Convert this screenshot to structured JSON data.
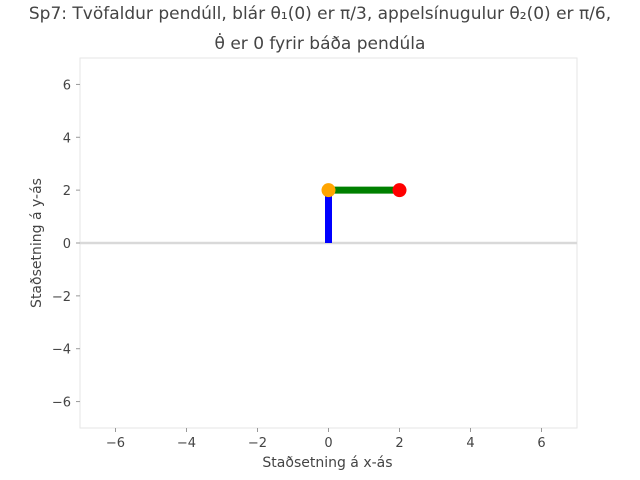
{
  "chart_data": {
    "type": "line",
    "title_line1": "Sp7: Tvöfaldur pendúll, blár θ₁(0) er π/3, appelsínugulur θ₂(0) er π/6,",
    "title_line2": "θ̇ er 0 fyrir báða pendúla",
    "xlabel": "Staðsetning á x-ás",
    "ylabel": "Staðsetning á y-ás",
    "xlim": [
      -7,
      7
    ],
    "ylim": [
      -7,
      7
    ],
    "xticks": [
      -6,
      -4,
      -2,
      0,
      2,
      4,
      6
    ],
    "yticks": [
      -6,
      -4,
      -2,
      0,
      2,
      4,
      6
    ],
    "grid": false,
    "series": [
      {
        "color": "#0000ff",
        "x": [
          0,
          0
        ],
        "y": [
          0,
          2
        ]
      },
      {
        "color": "#008000",
        "x": [
          0,
          2
        ],
        "y": [
          2,
          2
        ]
      }
    ],
    "points": [
      {
        "color": "#ffa500",
        "x": 0,
        "y": 2
      },
      {
        "color": "#ff0000",
        "x": 2,
        "y": 2
      }
    ],
    "reference_line": {
      "y": 0,
      "color": "#d9d9d9"
    }
  }
}
